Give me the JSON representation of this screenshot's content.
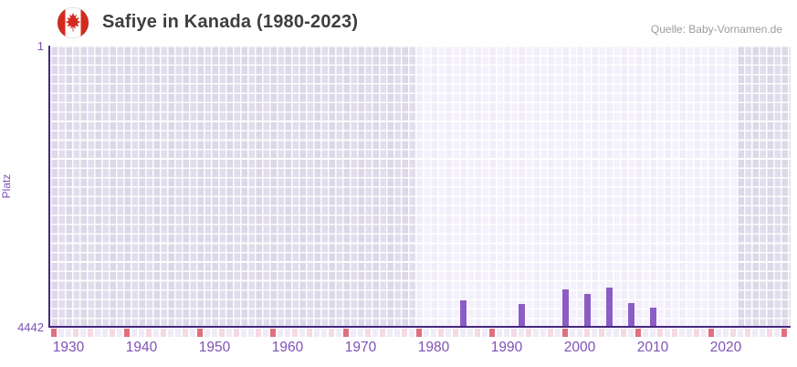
{
  "header": {
    "title": "Safiye in Kanada (1980-2023)",
    "source": "Quelle: Baby-Vornamen.de",
    "flag_icon": "canada-flag-icon"
  },
  "chart_data": {
    "type": "bar",
    "title": "Safiye in Kanada (1980-2023)",
    "xlabel": "",
    "ylabel": "Platz",
    "y_axis": {
      "top_tick": "1",
      "bottom_tick": "4442",
      "min": 1,
      "max": 4442,
      "inverted": true,
      "grid": true
    },
    "x_axis": {
      "start_year": 1928,
      "end_year": 2028,
      "tick_labels": [
        "1930",
        "1940",
        "1950",
        "1960",
        "1970",
        "1980",
        "1990",
        "2000",
        "2010",
        "2020"
      ]
    },
    "highlight_band": {
      "from_year": 1978,
      "to_year": 2022
    },
    "series": [
      {
        "name": "Platz",
        "points": [
          {
            "year": 1984,
            "rank": 4020
          },
          {
            "year": 1992,
            "rank": 4080
          },
          {
            "year": 1998,
            "rank": 3850
          },
          {
            "year": 2001,
            "rank": 3920
          },
          {
            "year": 2004,
            "rank": 3820
          },
          {
            "year": 2007,
            "rank": 4070
          },
          {
            "year": 2010,
            "rank": 4140
          }
        ]
      }
    ],
    "bottom_strip": {
      "red_years": [
        1928,
        1938,
        1948,
        1958,
        1968,
        1978,
        1988,
        1998,
        2008,
        2018,
        2028
      ],
      "pink_years": [
        1931,
        1933,
        1936,
        1941,
        1943,
        1946,
        1951,
        1953,
        1956,
        1961,
        1963,
        1966,
        1971,
        1973,
        1976,
        1981,
        1983,
        1986,
        1991,
        1993,
        1996,
        2001,
        2003,
        2006,
        2011,
        2013,
        2016,
        2021,
        2023,
        2026
      ]
    },
    "legend": null
  },
  "colors": {
    "bar": "#8b5cc6",
    "axis_line": "#46277f",
    "axis_label": "#7e52b5",
    "strip_red": "#e0707f",
    "strip_pink": "#f5d9e4",
    "strip_base": "#efebf7",
    "title_text": "#3e3e3e",
    "source_text": "#9c9c9c",
    "flag_red": "#d52b1e"
  }
}
